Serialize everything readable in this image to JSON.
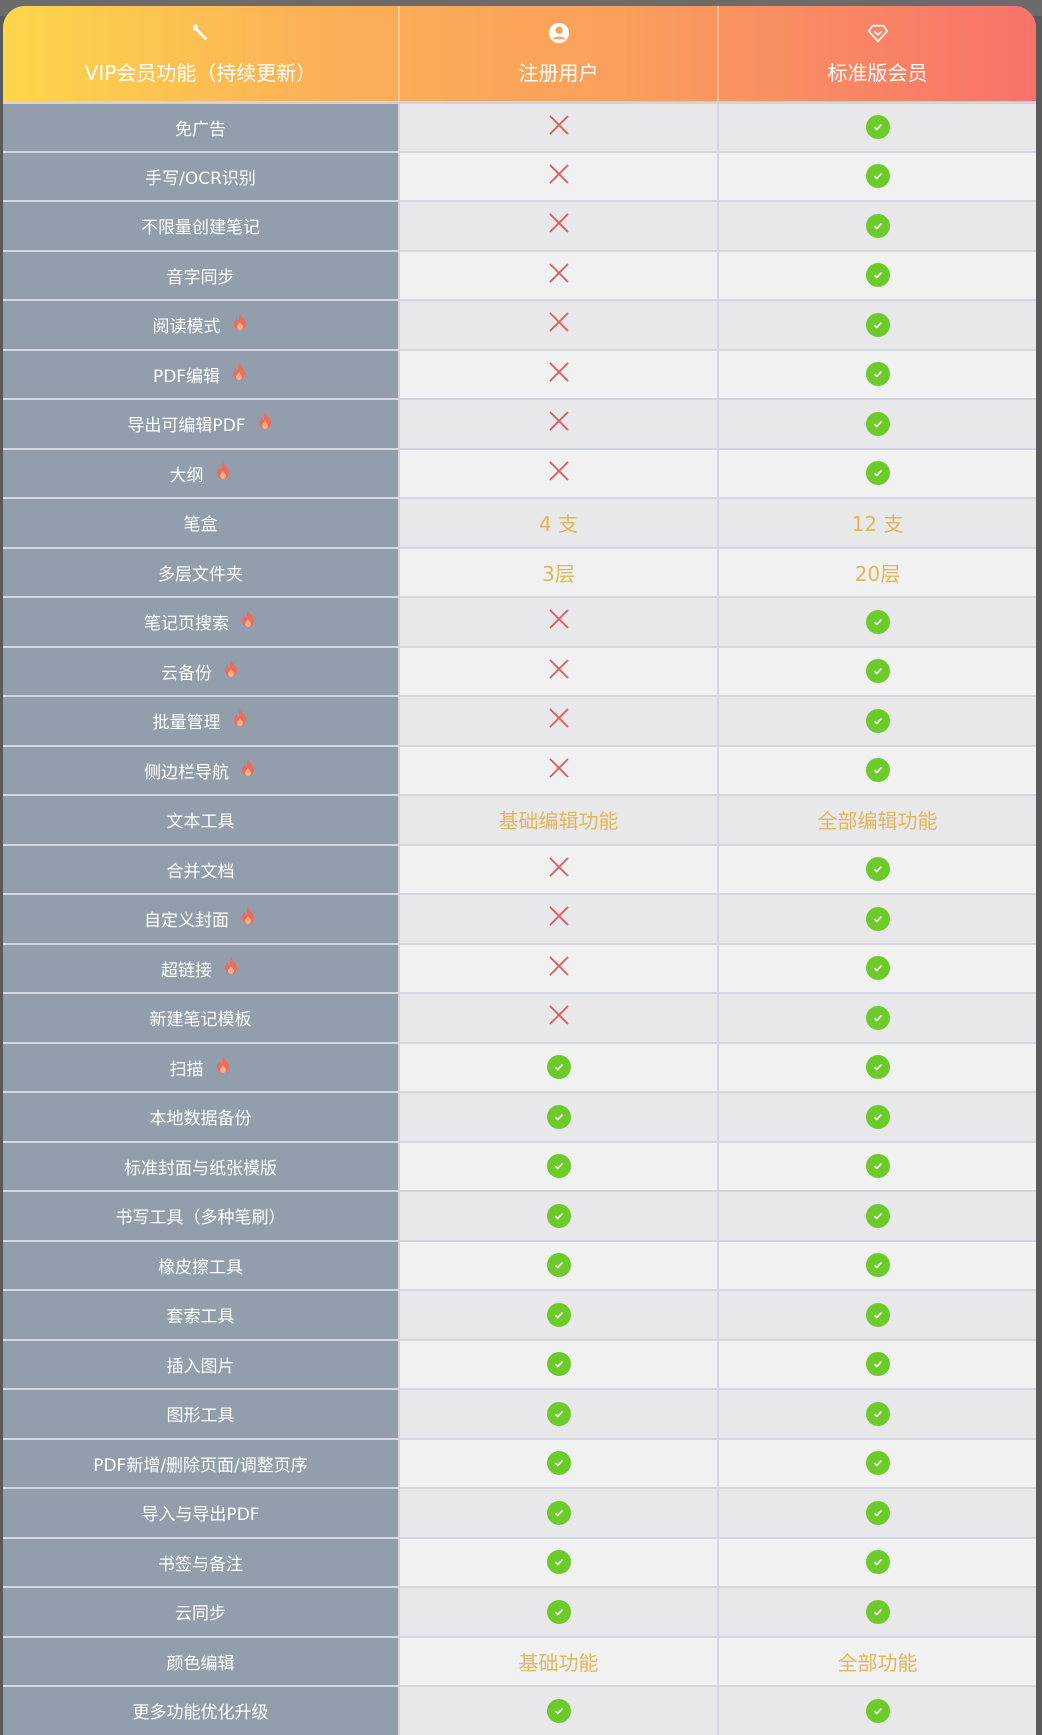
{
  "header": {
    "feature": "VIP会员功能（持续更新）",
    "free": "注册用户",
    "vip": "标准版会员",
    "icons": [
      "wrench-icon",
      "user-icon",
      "diamond-icon"
    ]
  },
  "colors": {
    "check": "#6ccb2a",
    "cross": "#e05a5a",
    "text_value": "#e2b75a",
    "feature_bg": "#929eab"
  },
  "rows": [
    {
      "name": "免广告",
      "hot": false,
      "free": "x",
      "vip": "v"
    },
    {
      "name": "手写/OCR识别",
      "hot": false,
      "free": "x",
      "vip": "v"
    },
    {
      "name": "不限量创建笔记",
      "hot": false,
      "free": "x",
      "vip": "v"
    },
    {
      "name": "音字同步",
      "hot": false,
      "free": "x",
      "vip": "v"
    },
    {
      "name": "阅读模式",
      "hot": true,
      "free": "x",
      "vip": "v"
    },
    {
      "name": "PDF编辑",
      "hot": true,
      "free": "x",
      "vip": "v"
    },
    {
      "name": "导出可编辑PDF",
      "hot": true,
      "free": "x",
      "vip": "v"
    },
    {
      "name": "大纲",
      "hot": true,
      "free": "x",
      "vip": "v"
    },
    {
      "name": "笔盒",
      "hot": false,
      "free": "4 支",
      "vip": "12 支"
    },
    {
      "name": "多层文件夹",
      "hot": false,
      "free": "3层",
      "vip": "20层"
    },
    {
      "name": "笔记页搜索",
      "hot": true,
      "free": "x",
      "vip": "v"
    },
    {
      "name": "云备份",
      "hot": true,
      "free": "x",
      "vip": "v"
    },
    {
      "name": "批量管理",
      "hot": true,
      "free": "x",
      "vip": "v"
    },
    {
      "name": "侧边栏导航",
      "hot": true,
      "free": "x",
      "vip": "v"
    },
    {
      "name": "文本工具",
      "hot": false,
      "free": "基础编辑功能",
      "vip": "全部编辑功能"
    },
    {
      "name": "合并文档",
      "hot": false,
      "free": "x",
      "vip": "v"
    },
    {
      "name": "自定义封面",
      "hot": true,
      "free": "x",
      "vip": "v"
    },
    {
      "name": "超链接",
      "hot": true,
      "free": "x",
      "vip": "v"
    },
    {
      "name": "新建笔记模板",
      "hot": false,
      "free": "x",
      "vip": "v"
    },
    {
      "name": "扫描",
      "hot": true,
      "free": "v",
      "vip": "v"
    },
    {
      "name": "本地数据备份",
      "hot": false,
      "free": "v",
      "vip": "v"
    },
    {
      "name": "标准封面与纸张模版",
      "hot": false,
      "free": "v",
      "vip": "v"
    },
    {
      "name": "书写工具（多种笔刷）",
      "hot": false,
      "free": "v",
      "vip": "v"
    },
    {
      "name": "橡皮擦工具",
      "hot": false,
      "free": "v",
      "vip": "v"
    },
    {
      "name": "套索工具",
      "hot": false,
      "free": "v",
      "vip": "v"
    },
    {
      "name": "插入图片",
      "hot": false,
      "free": "v",
      "vip": "v"
    },
    {
      "name": "图形工具",
      "hot": false,
      "free": "v",
      "vip": "v"
    },
    {
      "name": "PDF新增/删除页面/调整页序",
      "hot": false,
      "free": "v",
      "vip": "v"
    },
    {
      "name": "导入与导出PDF",
      "hot": false,
      "free": "v",
      "vip": "v"
    },
    {
      "name": "书签与备注",
      "hot": false,
      "free": "v",
      "vip": "v"
    },
    {
      "name": "云同步",
      "hot": false,
      "free": "v",
      "vip": "v"
    },
    {
      "name": "颜色编辑",
      "hot": false,
      "free": "基础功能",
      "vip": "全部功能"
    },
    {
      "name": "更多功能优化升级",
      "hot": false,
      "free": "v",
      "vip": "v"
    }
  ]
}
